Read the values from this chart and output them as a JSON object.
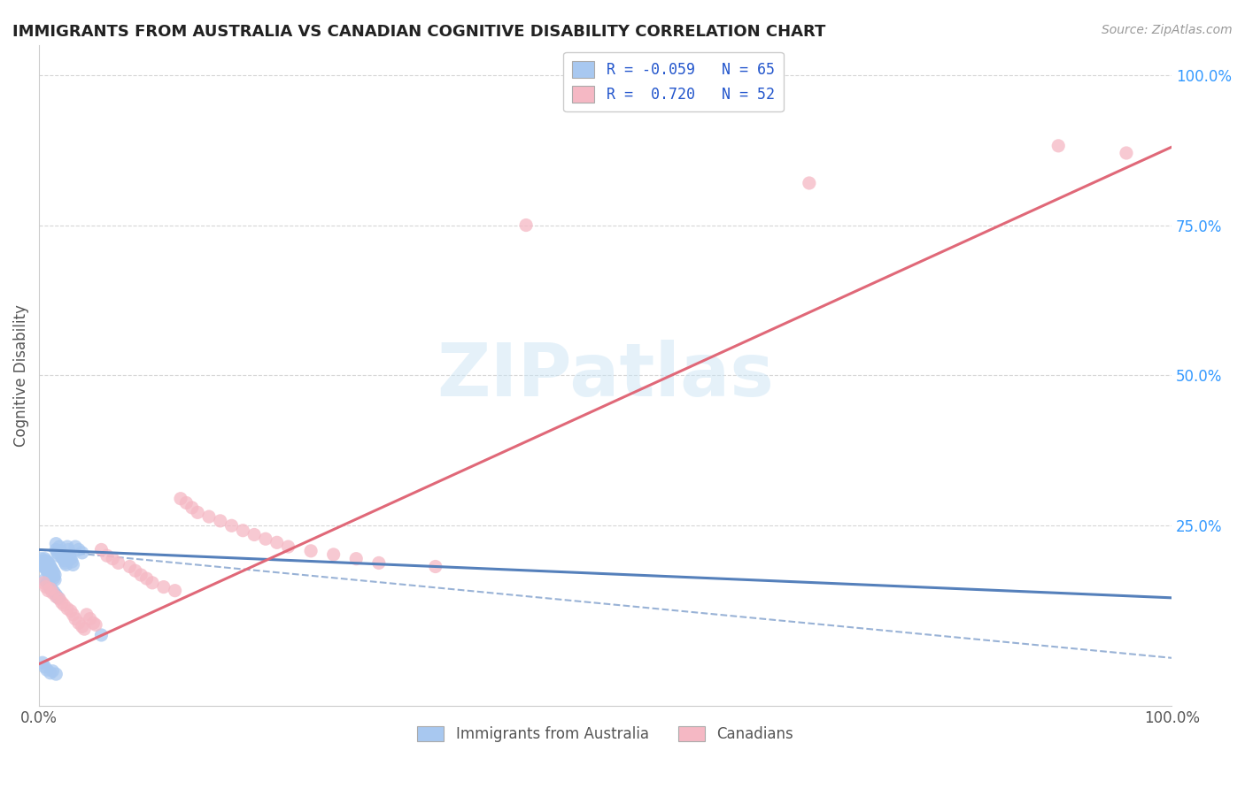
{
  "title": "IMMIGRANTS FROM AUSTRALIA VS CANADIAN COGNITIVE DISABILITY CORRELATION CHART",
  "source": "Source: ZipAtlas.com",
  "ylabel": "Cognitive Disability",
  "watermark": "ZIPatlas",
  "blue_color": "#a8c8f0",
  "pink_color": "#f5b8c4",
  "blue_line_color": "#5580bb",
  "pink_line_color": "#e06878",
  "blue_scatter": [
    [
      0.002,
      0.195
    ],
    [
      0.003,
      0.19
    ],
    [
      0.003,
      0.185
    ],
    [
      0.004,
      0.188
    ],
    [
      0.004,
      0.182
    ],
    [
      0.005,
      0.195
    ],
    [
      0.005,
      0.188
    ],
    [
      0.005,
      0.182
    ],
    [
      0.006,
      0.192
    ],
    [
      0.006,
      0.185
    ],
    [
      0.006,
      0.178
    ],
    [
      0.007,
      0.19
    ],
    [
      0.007,
      0.183
    ],
    [
      0.007,
      0.175
    ],
    [
      0.008,
      0.188
    ],
    [
      0.008,
      0.18
    ],
    [
      0.008,
      0.172
    ],
    [
      0.009,
      0.185
    ],
    [
      0.009,
      0.177
    ],
    [
      0.009,
      0.168
    ],
    [
      0.01,
      0.182
    ],
    [
      0.01,
      0.174
    ],
    [
      0.01,
      0.165
    ],
    [
      0.011,
      0.178
    ],
    [
      0.011,
      0.17
    ],
    [
      0.012,
      0.175
    ],
    [
      0.012,
      0.167
    ],
    [
      0.013,
      0.172
    ],
    [
      0.013,
      0.163
    ],
    [
      0.014,
      0.168
    ],
    [
      0.014,
      0.16
    ],
    [
      0.015,
      0.22
    ],
    [
      0.015,
      0.21
    ],
    [
      0.016,
      0.205
    ],
    [
      0.017,
      0.2
    ],
    [
      0.018,
      0.215
    ],
    [
      0.019,
      0.208
    ],
    [
      0.02,
      0.198
    ],
    [
      0.021,
      0.195
    ],
    [
      0.022,
      0.192
    ],
    [
      0.023,
      0.188
    ],
    [
      0.024,
      0.185
    ],
    [
      0.025,
      0.215
    ],
    [
      0.026,
      0.21
    ],
    [
      0.027,
      0.2
    ],
    [
      0.028,
      0.195
    ],
    [
      0.029,
      0.19
    ],
    [
      0.03,
      0.185
    ],
    [
      0.032,
      0.215
    ],
    [
      0.035,
      0.21
    ],
    [
      0.038,
      0.205
    ],
    [
      0.005,
      0.16
    ],
    [
      0.007,
      0.155
    ],
    [
      0.009,
      0.15
    ],
    [
      0.011,
      0.145
    ],
    [
      0.013,
      0.14
    ],
    [
      0.015,
      0.135
    ],
    [
      0.017,
      0.13
    ],
    [
      0.055,
      0.068
    ],
    [
      0.003,
      0.022
    ],
    [
      0.005,
      0.015
    ],
    [
      0.007,
      0.01
    ],
    [
      0.01,
      0.005
    ],
    [
      0.012,
      0.008
    ],
    [
      0.015,
      0.003
    ]
  ],
  "pink_scatter": [
    [
      0.004,
      0.155
    ],
    [
      0.006,
      0.148
    ],
    [
      0.008,
      0.142
    ],
    [
      0.01,
      0.145
    ],
    [
      0.012,
      0.138
    ],
    [
      0.015,
      0.132
    ],
    [
      0.018,
      0.128
    ],
    [
      0.02,
      0.122
    ],
    [
      0.022,
      0.118
    ],
    [
      0.025,
      0.112
    ],
    [
      0.028,
      0.108
    ],
    [
      0.03,
      0.102
    ],
    [
      0.032,
      0.095
    ],
    [
      0.035,
      0.088
    ],
    [
      0.038,
      0.082
    ],
    [
      0.04,
      0.078
    ],
    [
      0.042,
      0.102
    ],
    [
      0.045,
      0.095
    ],
    [
      0.048,
      0.088
    ],
    [
      0.05,
      0.085
    ],
    [
      0.055,
      0.21
    ],
    [
      0.06,
      0.2
    ],
    [
      0.065,
      0.195
    ],
    [
      0.07,
      0.188
    ],
    [
      0.08,
      0.182
    ],
    [
      0.085,
      0.175
    ],
    [
      0.09,
      0.168
    ],
    [
      0.095,
      0.162
    ],
    [
      0.1,
      0.155
    ],
    [
      0.11,
      0.148
    ],
    [
      0.12,
      0.142
    ],
    [
      0.125,
      0.295
    ],
    [
      0.13,
      0.288
    ],
    [
      0.135,
      0.28
    ],
    [
      0.14,
      0.272
    ],
    [
      0.15,
      0.265
    ],
    [
      0.16,
      0.258
    ],
    [
      0.17,
      0.25
    ],
    [
      0.18,
      0.242
    ],
    [
      0.19,
      0.235
    ],
    [
      0.2,
      0.228
    ],
    [
      0.21,
      0.222
    ],
    [
      0.22,
      0.215
    ],
    [
      0.24,
      0.208
    ],
    [
      0.26,
      0.202
    ],
    [
      0.28,
      0.195
    ],
    [
      0.3,
      0.188
    ],
    [
      0.35,
      0.182
    ],
    [
      0.9,
      0.882
    ],
    [
      0.68,
      0.82
    ],
    [
      0.43,
      0.75
    ],
    [
      0.96,
      0.87
    ]
  ],
  "xlim": [
    0.0,
    1.0
  ],
  "ylim": [
    -0.05,
    1.05
  ],
  "blue_trend": [
    0.0,
    0.21,
    1.0,
    0.13
  ],
  "blue_dashed": [
    0.0,
    0.21,
    1.0,
    0.03
  ],
  "pink_trend": [
    0.0,
    0.02,
    1.0,
    0.88
  ],
  "right_ytick_vals": [
    0.25,
    0.5,
    0.75,
    1.0
  ],
  "right_ytick_labels": [
    "25.0%",
    "50.0%",
    "75.0%",
    "100.0%"
  ],
  "bg_color": "#ffffff",
  "grid_color": "#cccccc",
  "legend_blue_label": "R = -0.059   N = 65",
  "legend_pink_label": "R =  0.720   N = 52",
  "bottom_legend_blue": "Immigrants from Australia",
  "bottom_legend_pink": "Canadians"
}
